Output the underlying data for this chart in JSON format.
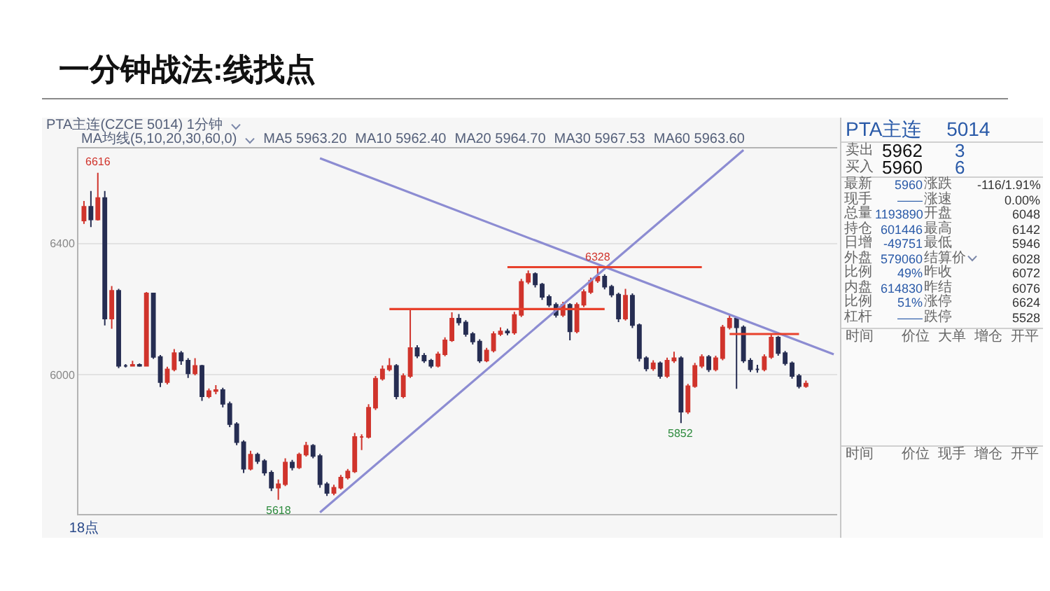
{
  "chart_data": [
    {
      "type": "candlestick",
      "title": "一分钟战法:线找点",
      "subtitle": "PTA主连(CZCE 5014) 1分钟",
      "annotations": [
        "MA均线(5,10,20,30,60,0)",
        "MA5 5963.20",
        "MA10 5962.40",
        "MA20 5964.70",
        "MA30 5967.53",
        "MA60 5963.60",
        {
          "text": "6616",
          "y": 6616
        },
        {
          "text": "6328",
          "y": 6328
        },
        {
          "text": "5618",
          "y": 5618
        },
        {
          "text": "5852",
          "y": 5852
        }
      ],
      "categories": [
        "18点",
        null,
        null,
        null,
        null,
        null,
        null,
        null,
        null,
        null,
        null,
        null,
        null,
        null,
        null,
        null,
        null,
        null,
        null,
        null,
        null,
        null,
        null,
        null,
        null,
        null,
        null,
        null,
        null,
        null,
        null,
        null,
        null,
        null,
        null,
        null,
        null,
        null,
        null,
        null,
        null,
        null,
        null,
        null,
        null,
        null,
        null,
        null,
        null,
        null,
        null,
        null,
        null,
        null,
        null,
        null,
        null,
        null,
        null,
        null,
        null,
        null,
        null,
        null,
        null,
        null,
        null,
        null,
        null,
        null,
        null,
        null,
        null,
        null,
        null,
        null,
        null,
        null,
        null,
        null,
        null,
        null,
        null,
        null,
        null,
        null,
        null,
        null,
        null,
        null,
        null,
        null,
        null,
        null,
        null,
        null,
        null,
        null,
        null,
        null,
        null,
        null,
        null,
        null,
        null,
        null,
        null,
        null,
        null
      ],
      "ohlc": [
        [
          6470,
          6530,
          6460,
          6512
        ],
        [
          6512,
          6560,
          6450,
          6473
        ],
        [
          6473,
          6616,
          6470,
          6539
        ],
        [
          6539,
          6560,
          6150,
          6171
        ],
        [
          6171,
          6270,
          6140,
          6256
        ],
        [
          6256,
          6262,
          6020,
          6027
        ],
        [
          6027,
          6032,
          6022,
          6027
        ],
        [
          6027,
          6042,
          6025,
          6030
        ],
        [
          6030,
          6034,
          6024,
          6027
        ],
        [
          6027,
          6252,
          6025,
          6248
        ],
        [
          6248,
          6250,
          6048,
          6054
        ],
        [
          6054,
          6060,
          5962,
          5977
        ],
        [
          5977,
          6024,
          5970,
          6016
        ],
        [
          6016,
          6078,
          6010,
          6066
        ],
        [
          6066,
          6072,
          6030,
          6043
        ],
        [
          6043,
          6050,
          5990,
          6004
        ],
        [
          6004,
          6050,
          5998,
          6027
        ],
        [
          6027,
          6030,
          5920,
          5934
        ],
        [
          5934,
          5958,
          5928,
          5950
        ],
        [
          5950,
          5968,
          5940,
          5953
        ],
        [
          5953,
          5960,
          5900,
          5911
        ],
        [
          5911,
          5918,
          5840,
          5849
        ],
        [
          5849,
          5855,
          5785,
          5794
        ],
        [
          5794,
          5800,
          5700,
          5713
        ],
        [
          5713,
          5768,
          5708,
          5756
        ],
        [
          5756,
          5762,
          5728,
          5736
        ],
        [
          5736,
          5742,
          5692,
          5701
        ],
        [
          5701,
          5708,
          5645,
          5655
        ],
        [
          5655,
          5680,
          5618,
          5666
        ],
        [
          5666,
          5745,
          5660,
          5732
        ],
        [
          5732,
          5740,
          5708,
          5717
        ],
        [
          5717,
          5762,
          5712,
          5756
        ],
        [
          5756,
          5795,
          5750,
          5783
        ],
        [
          5783,
          5788,
          5745,
          5752
        ],
        [
          5752,
          5758,
          5655,
          5666
        ],
        [
          5666,
          5672,
          5630,
          5639
        ],
        [
          5639,
          5664,
          5632,
          5655
        ],
        [
          5655,
          5694,
          5650,
          5686
        ],
        [
          5686,
          5712,
          5680,
          5705
        ],
        [
          5705,
          5822,
          5700,
          5810
        ],
        [
          5810,
          5818,
          5770,
          5810
        ],
        [
          5810,
          5910,
          5805,
          5899
        ],
        [
          5899,
          5996,
          5892,
          5988
        ],
        [
          5988,
          6028,
          5982,
          6016
        ],
        [
          6016,
          6050,
          6010,
          6027
        ],
        [
          6027,
          6032,
          5925,
          5934
        ],
        [
          5934,
          6004,
          5928,
          5996
        ],
        [
          5996,
          6200,
          5990,
          6081
        ],
        [
          6081,
          6090,
          6050,
          6058
        ],
        [
          6058,
          6066,
          6036,
          6043
        ],
        [
          6043,
          6048,
          6020,
          6027
        ],
        [
          6027,
          6070,
          6022,
          6062
        ],
        [
          6062,
          6114,
          6056,
          6105
        ],
        [
          6105,
          6190,
          6100,
          6171
        ],
        [
          6171,
          6185,
          6150,
          6159
        ],
        [
          6159,
          6166,
          6116,
          6124
        ],
        [
          6124,
          6130,
          6092,
          6101
        ],
        [
          6101,
          6108,
          6036,
          6043
        ],
        [
          6043,
          6082,
          6038,
          6074
        ],
        [
          6074,
          6132,
          6068,
          6124
        ],
        [
          6124,
          6144,
          6118,
          6132
        ],
        [
          6132,
          6140,
          6120,
          6128
        ],
        [
          6128,
          6192,
          6122,
          6182
        ],
        [
          6182,
          6292,
          6176,
          6283
        ],
        [
          6283,
          6318,
          6276,
          6307
        ],
        [
          6307,
          6312,
          6266,
          6275
        ],
        [
          6275,
          6280,
          6228,
          6237
        ],
        [
          6237,
          6244,
          6206,
          6213
        ],
        [
          6213,
          6220,
          6174,
          6182
        ],
        [
          6182,
          6222,
          6176,
          6213
        ],
        [
          6213,
          6218,
          6105,
          6132
        ],
        [
          6132,
          6220,
          6126,
          6213
        ],
        [
          6213,
          6260,
          6206,
          6252
        ],
        [
          6252,
          6296,
          6246,
          6287
        ],
        [
          6287,
          6328,
          6280,
          6299
        ],
        [
          6299,
          6306,
          6260,
          6268
        ],
        [
          6268,
          6274,
          6236,
          6244
        ],
        [
          6244,
          6250,
          6160,
          6171
        ],
        [
          6171,
          6262,
          6165,
          6241
        ],
        [
          6241,
          6248,
          6142,
          6151
        ],
        [
          6151,
          6156,
          6040,
          6050
        ],
        [
          6050,
          6056,
          6010,
          6019
        ],
        [
          6019,
          6044,
          6012,
          6035
        ],
        [
          6035,
          6040,
          5988,
          5996
        ],
        [
          5996,
          6052,
          5990,
          6043
        ],
        [
          6043,
          6070,
          6036,
          6050
        ],
        [
          6050,
          6056,
          5852,
          5887
        ],
        [
          5887,
          5972,
          5880,
          5965
        ],
        [
          5965,
          6036,
          5960,
          6027
        ],
        [
          6027,
          6062,
          6020,
          6054
        ],
        [
          6054,
          6060,
          6008,
          6016
        ],
        [
          6016,
          6058,
          6010,
          6050
        ],
        [
          6050,
          6152,
          6044,
          6144
        ],
        [
          6144,
          6182,
          6138,
          6171
        ],
        [
          6171,
          6176,
          5957,
          6144
        ],
        [
          6144,
          6150,
          6036,
          6043
        ],
        [
          6043,
          6050,
          6008,
          6016
        ],
        [
          6016,
          6030,
          6006,
          6016
        ],
        [
          6016,
          6062,
          6010,
          6054
        ],
        [
          6054,
          6124,
          6048,
          6113
        ],
        [
          6113,
          6118,
          6058,
          6066
        ],
        [
          6066,
          6072,
          6028,
          6035
        ],
        [
          6035,
          6040,
          5988,
          5996
        ],
        [
          5996,
          6002,
          5958,
          5965
        ],
        [
          5965,
          5982,
          5960,
          5973
        ],
        null,
        null,
        null,
        null
      ],
      "series": [
        {
          "type": "line",
          "color": "#8c8cd2",
          "values": [
            null,
            null,
            null,
            null,
            null,
            null,
            null,
            null,
            null,
            null,
            null,
            null,
            null,
            null,
            null,
            null,
            null,
            null,
            null,
            null,
            null,
            null,
            null,
            null,
            null,
            null,
            null,
            null,
            null,
            null,
            null,
            null,
            null,
            null,
            6660,
            null,
            null,
            null,
            null,
            null,
            null,
            null,
            null,
            null,
            null,
            null,
            null,
            null,
            null,
            null,
            null,
            null,
            null,
            null,
            null,
            null,
            null,
            null,
            null,
            null,
            null,
            null,
            null,
            null,
            null,
            null,
            null,
            null,
            null,
            null,
            null,
            null,
            null,
            null,
            null,
            null,
            null,
            null,
            null,
            null,
            null,
            null,
            null,
            null,
            null,
            null,
            null,
            null,
            null,
            null,
            null,
            null,
            null,
            null,
            null,
            null,
            null,
            null,
            null,
            null,
            null,
            null,
            null,
            null,
            null,
            null,
            null,
            null,
            6062
          ]
        },
        {
          "type": "line",
          "color": "#8c8cd2",
          "values": [
            null,
            null,
            null,
            null,
            null,
            null,
            null,
            null,
            null,
            null,
            null,
            null,
            null,
            null,
            null,
            null,
            null,
            null,
            null,
            null,
            null,
            null,
            null,
            null,
            null,
            null,
            null,
            null,
            null,
            null,
            null,
            null,
            null,
            null,
            5580,
            null,
            null,
            null,
            null,
            null,
            null,
            null,
            null,
            null,
            null,
            null,
            null,
            null,
            null,
            null,
            null,
            null,
            null,
            null,
            null,
            null,
            null,
            null,
            null,
            null,
            null,
            null,
            null,
            null,
            null,
            null,
            null,
            null,
            null,
            null,
            null,
            null,
            null,
            null,
            null,
            null,
            null,
            null,
            null,
            null,
            null,
            null,
            null,
            null,
            null,
            null,
            null,
            null,
            null,
            null,
            null,
            null,
            null,
            null,
            null,
            6685,
            null,
            null,
            null,
            null,
            null,
            null,
            null,
            null,
            null,
            null,
            null,
            null,
            null
          ]
        },
        {
          "type": "line",
          "color": "#e8412c",
          "values": [
            null,
            null,
            null,
            null,
            null,
            null,
            null,
            null,
            null,
            null,
            null,
            null,
            null,
            null,
            null,
            null,
            null,
            null,
            null,
            null,
            null,
            null,
            null,
            null,
            null,
            null,
            null,
            null,
            null,
            null,
            null,
            null,
            null,
            null,
            null,
            null,
            null,
            null,
            null,
            null,
            null,
            null,
            null,
            null,
            6200,
            null,
            null,
            null,
            null,
            null,
            null,
            null,
            null,
            null,
            null,
            null,
            null,
            null,
            null,
            null,
            null,
            null,
            null,
            null,
            null,
            null,
            null,
            null,
            null,
            null,
            null,
            null,
            null,
            null,
            null,
            6200,
            null,
            null,
            null,
            null,
            null,
            null,
            null,
            null,
            null,
            null,
            null,
            null,
            null,
            null,
            null,
            null,
            null,
            null,
            null,
            null,
            null,
            null,
            null,
            null,
            null,
            null,
            null,
            null,
            null,
            null,
            null,
            null,
            null
          ]
        },
        {
          "type": "line",
          "color": "#e8412c",
          "values": [
            null,
            null,
            null,
            null,
            null,
            null,
            null,
            null,
            null,
            null,
            null,
            null,
            null,
            null,
            null,
            null,
            null,
            null,
            null,
            null,
            null,
            null,
            null,
            null,
            null,
            null,
            null,
            null,
            null,
            null,
            null,
            null,
            null,
            null,
            null,
            null,
            null,
            null,
            null,
            null,
            null,
            null,
            null,
            null,
            null,
            null,
            null,
            null,
            null,
            null,
            null,
            null,
            null,
            null,
            null,
            null,
            null,
            null,
            null,
            null,
            null,
            6328,
            null,
            null,
            null,
            null,
            null,
            null,
            null,
            null,
            null,
            null,
            null,
            null,
            null,
            null,
            null,
            null,
            null,
            null,
            null,
            null,
            null,
            null,
            null,
            null,
            null,
            null,
            null,
            6328,
            null,
            null,
            null,
            null,
            null,
            null,
            null,
            null,
            null,
            null,
            null,
            null,
            null,
            null,
            null,
            null,
            null,
            null,
            null
          ]
        },
        {
          "type": "line",
          "color": "#e8412c",
          "values": [
            null,
            null,
            null,
            null,
            null,
            null,
            null,
            null,
            null,
            null,
            null,
            null,
            null,
            null,
            null,
            null,
            null,
            null,
            null,
            null,
            null,
            null,
            null,
            null,
            null,
            null,
            null,
            null,
            null,
            null,
            null,
            null,
            null,
            null,
            null,
            null,
            null,
            null,
            null,
            null,
            null,
            null,
            null,
            null,
            null,
            null,
            null,
            null,
            null,
            null,
            null,
            null,
            null,
            null,
            null,
            null,
            null,
            null,
            null,
            null,
            null,
            null,
            null,
            null,
            null,
            null,
            null,
            null,
            null,
            null,
            null,
            null,
            null,
            null,
            null,
            null,
            null,
            null,
            null,
            null,
            null,
            null,
            null,
            null,
            null,
            null,
            null,
            null,
            null,
            null,
            null,
            null,
            null,
            6124,
            null,
            null,
            null,
            null,
            null,
            null,
            null,
            null,
            null,
            6124,
            null,
            null,
            null,
            null,
            null
          ]
        }
      ],
      "ylim": [
        5575,
        6690
      ],
      "yticks": [
        6000,
        6400
      ],
      "grid": "y"
    },
    {
      "type": "other",
      "title": "PTA主连 5014",
      "annotations": [
        "卖出",
        "5962",
        "3",
        "买入",
        "5960",
        "6",
        "最新",
        "5960",
        "涨跌",
        "-116/1.91%",
        "现手",
        "——",
        "涨速",
        "0.00%",
        "总量",
        "1193890",
        "开盘",
        "6048",
        "持仓",
        "601446",
        "最高",
        "6142",
        "日增",
        "-49751",
        "最低",
        "5946",
        "外盘",
        "579060",
        "结算价",
        "6028",
        "比例",
        "49%",
        "昨收",
        "6072",
        "内盘",
        "614830",
        "昨结",
        "6076",
        "比例",
        "51%",
        "涨停",
        "6624",
        "杠杆",
        "——",
        "跌停",
        "5528",
        "时间",
        "价位",
        "大单",
        "增仓",
        "开平",
        "时间",
        "价位",
        "现手",
        "增仓",
        "开平"
      ]
    }
  ]
}
